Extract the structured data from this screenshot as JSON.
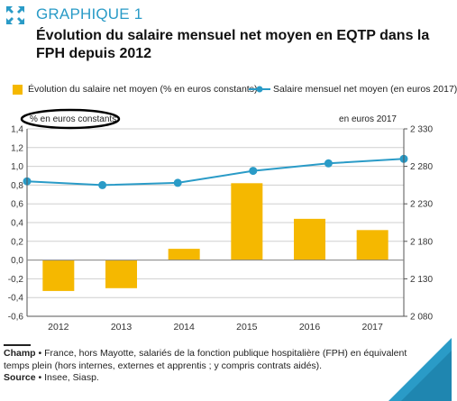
{
  "header": {
    "kicker": "GRAPHIQUE 1",
    "title": "Évolution du salaire mensuel net moyen en EQTP dans la FPH depuis 2012"
  },
  "legend": {
    "bar_label": "Évolution du salaire net moyen (% en euros constants)",
    "line_label": "Salaire mensuel net moyen (en euros 2017)"
  },
  "chart_data": {
    "type": "bar",
    "categories": [
      "2012",
      "2013",
      "2014",
      "2015",
      "2016",
      "2017"
    ],
    "series": [
      {
        "name": "Évolution du salaire net moyen (% en euros constants)",
        "chart_type": "bar",
        "axis": "left",
        "values": [
          -0.33,
          -0.3,
          0.12,
          0.82,
          0.44,
          0.32
        ]
      },
      {
        "name": "Salaire mensuel net moyen (en euros 2017)",
        "chart_type": "line",
        "axis": "right",
        "values": [
          2260,
          2255,
          2258,
          2274,
          2284,
          2290
        ],
        "x_at_bounds": true
      }
    ],
    "left_axis": {
      "label": "% en euros constants",
      "ylim": [
        -0.6,
        1.4
      ],
      "ticks": [
        "-0,6",
        "-0,4",
        "-0,2",
        "0,0",
        "0,2",
        "0,4",
        "0,6",
        "0,8",
        "1,0",
        "1,2",
        "1,4"
      ]
    },
    "right_axis": {
      "label": "en euros 2017",
      "ylim": [
        2080,
        2330
      ],
      "ticks": [
        "2 080",
        "2 130",
        "2 180",
        "2 230",
        "2 280",
        "2 330"
      ]
    },
    "grid": true,
    "legend_position": "top",
    "colors": {
      "bar": "#f5b800",
      "line": "#2a9bc7",
      "grid": "#cfcfcf",
      "axis": "#555555"
    }
  },
  "footer": {
    "champ_label": "Champ",
    "champ_text": " • France, hors Mayotte, salariés de la fonction publique hospitalière (FPH) en équivalent temps plein (hors internes, externes et apprentis ; y compris contrats aidés).",
    "source_label": "Source",
    "source_text": " • Insee, Siasp."
  }
}
